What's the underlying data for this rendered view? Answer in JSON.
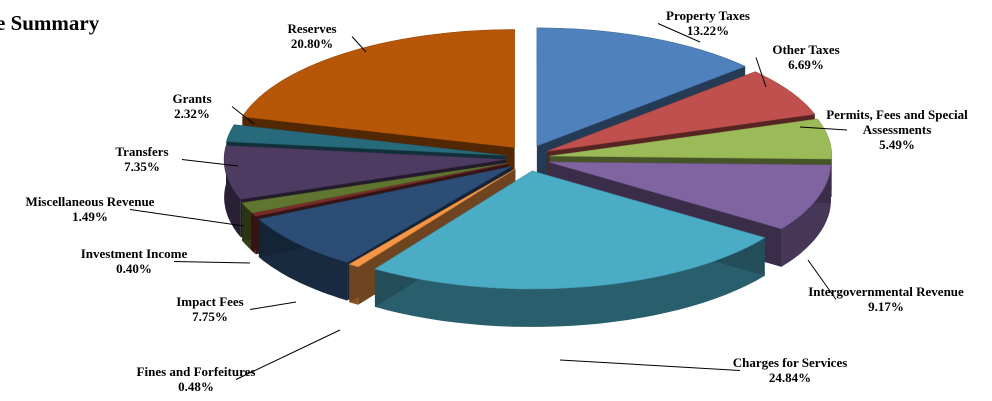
{
  "chart_data": {
    "type": "pie",
    "title": "e Summary",
    "slices": [
      {
        "name": "Property Taxes",
        "value": "13.22%",
        "pct": 13.22,
        "color": "#4F81BD"
      },
      {
        "name": "Other Taxes",
        "value": "6.69%",
        "pct": 6.69,
        "color": "#C0504D"
      },
      {
        "name": "Permits, Fees and Special Assessments",
        "value": "5.49%",
        "pct": 5.49,
        "color": "#9BBB59"
      },
      {
        "name": "Intergovernmental Revenue",
        "value": "9.17%",
        "pct": 9.17,
        "color": "#8064A2"
      },
      {
        "name": "Charges for Services",
        "value": "24.84%",
        "pct": 24.84,
        "color": "#4BACC6"
      },
      {
        "name": "Fines and Forfeitures",
        "value": "0.48%",
        "pct": 0.48,
        "color": "#F79646"
      },
      {
        "name": "Impact Fees",
        "value": "7.75%",
        "pct": 7.75,
        "color": "#2C4D75"
      },
      {
        "name": "Investment Income",
        "value": "0.40%",
        "pct": 0.4,
        "color": "#772C2A"
      },
      {
        "name": "Miscellaneous Revenue",
        "value": "1.49%",
        "pct": 1.49,
        "color": "#5F7530"
      },
      {
        "name": "Transfers",
        "value": "7.35%",
        "pct": 7.35,
        "color": "#4D3B62"
      },
      {
        "name": "Grants",
        "value": "2.32%",
        "pct": 2.32,
        "color": "#276A7C"
      },
      {
        "name": "Reserves",
        "value": "20.80%",
        "pct": 20.8,
        "color": "#B65708"
      }
    ]
  }
}
